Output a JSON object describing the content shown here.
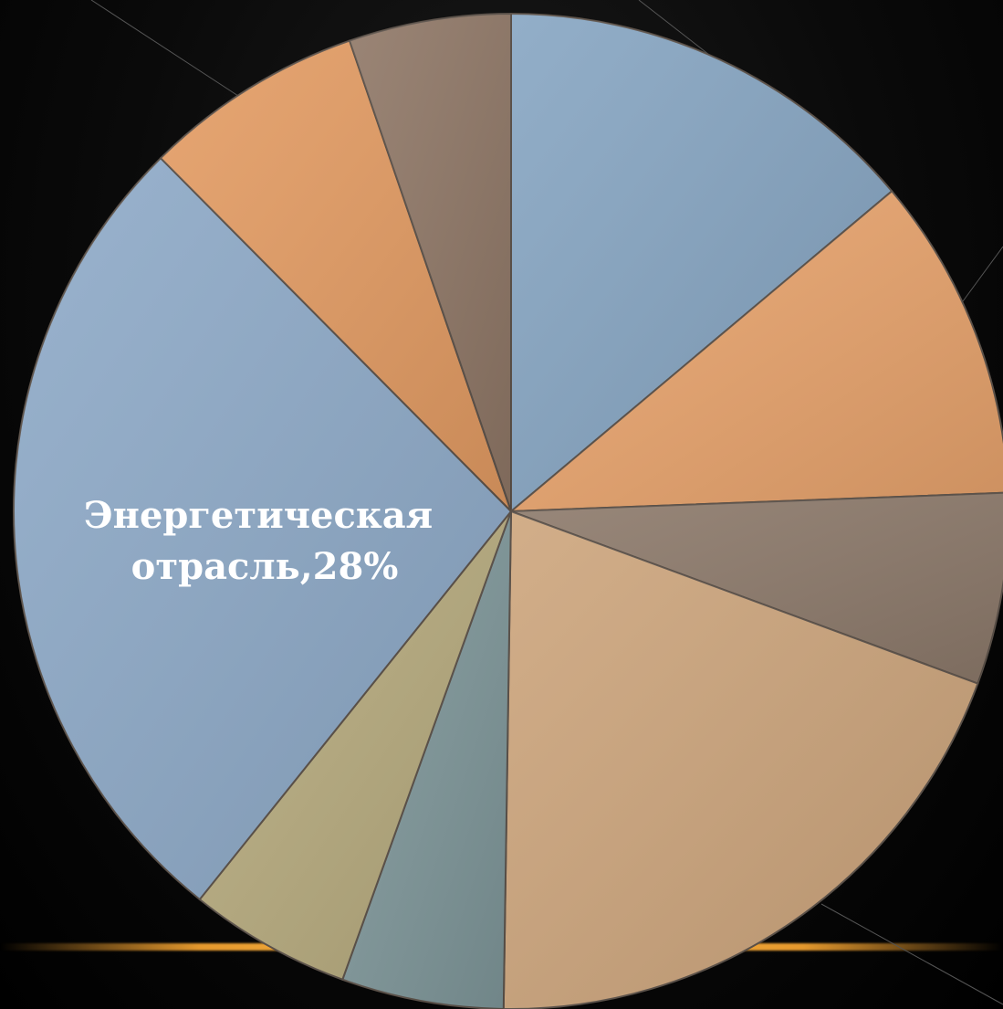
{
  "chart_data": {
    "type": "pie",
    "start_angle_deg": 0,
    "direction": "clockwise",
    "slices": [
      {
        "value": 14.5,
        "color": "#86a5c2",
        "label": ""
      },
      {
        "value": 11.0,
        "color": "#e9a46d",
        "label": ""
      },
      {
        "value": 6.5,
        "color": "#8d7a6b",
        "label": ""
      },
      {
        "value": 20.5,
        "color": "#cda57c",
        "label": ""
      },
      {
        "value": 5.5,
        "color": "#7f979a",
        "label": ""
      },
      {
        "value": 5.5,
        "color": "#b7ab7e",
        "label": ""
      },
      {
        "value": 28.0,
        "color": "#8eaac8",
        "label": "Энергетическая отрасль,28%"
      },
      {
        "value": 7.5,
        "color": "#e49c63",
        "label": ""
      },
      {
        "value": 5.5,
        "color": "#8f7766",
        "label": ""
      }
    ],
    "data_label": {
      "line1": "Энергетическая",
      "line2": "отрасль,28%"
    },
    "colors": {
      "background": "#0a0a0a",
      "accent_line": "#ffae3c",
      "slice_border": "#5a5048"
    }
  }
}
